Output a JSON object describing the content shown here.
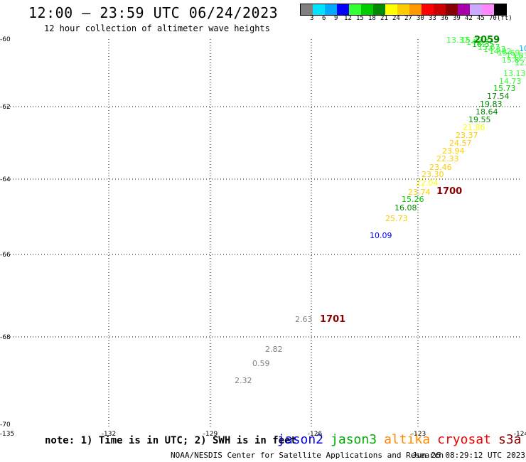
{
  "title": "12:00 – 23:59 UTC 06/24/2023",
  "subtitle": "12 hour collection of altimeter wave heights",
  "legend": {
    "colors": [
      "#808080",
      "#00e5ff",
      "#00aaff",
      "#0000ff",
      "#33ff33",
      "#00cc00",
      "#008800",
      "#ffff00",
      "#ffcc00",
      "#ff9900",
      "#ff0000",
      "#cc0000",
      "#880000",
      "#aa00aa",
      "#ccaaff",
      "#ff88ff",
      "#000000"
    ],
    "labels": [
      "3",
      "6",
      "9",
      "12",
      "15",
      "18",
      "21",
      "24",
      "27",
      "30",
      "33",
      "36",
      "39",
      "42",
      "45",
      "70",
      "(ft)"
    ]
  },
  "chart_data": {
    "type": "scatter",
    "xlim": [
      -135,
      -124
    ],
    "ylim": [
      -70,
      -60
    ],
    "x_ticks": [
      "-135",
      "-132",
      "-129",
      "-126",
      "-123",
      "-124"
    ],
    "y_ticks": [
      "-60",
      "-62",
      "-64",
      "-66",
      "-68",
      "-70"
    ],
    "grid": true,
    "time_labels": [
      {
        "text": "2059",
        "lon": -122.0,
        "lat": -60.0,
        "color": "#008800"
      },
      {
        "text": "1700",
        "lon": -122.3,
        "lat": -64.3,
        "color": "#880000"
      },
      {
        "text": "1701",
        "lon": -126.0,
        "lat": -67.7,
        "color": "#880000"
      }
    ],
    "points": [
      {
        "v": "13.37",
        "lon": -123.0,
        "lat": -60.0,
        "color": "#33ff33"
      },
      {
        "v": "15.8",
        "lon": -122.2,
        "lat": -60.4,
        "color": "#33ff33"
      },
      {
        "v": "13.13",
        "lon": -121.9,
        "lat": -60.9,
        "color": "#33ff33"
      },
      {
        "v": "14.73",
        "lon": -122.0,
        "lat": -61.2,
        "color": "#33ff33"
      },
      {
        "v": "15.73",
        "lon": -122.1,
        "lat": -61.5,
        "color": "#00cc00"
      },
      {
        "v": "17.54",
        "lon": -122.3,
        "lat": -61.7,
        "color": "#008800"
      },
      {
        "v": "19.83",
        "lon": -122.4,
        "lat": -62.0,
        "color": "#008800"
      },
      {
        "v": "18.64",
        "lon": -122.5,
        "lat": -62.2,
        "color": "#008800"
      },
      {
        "v": "19.55",
        "lon": -122.6,
        "lat": -62.4,
        "color": "#008800"
      },
      {
        "v": "21.86",
        "lon": -122.7,
        "lat": -62.7,
        "color": "#ffff00"
      },
      {
        "v": "23.37",
        "lon": -122.8,
        "lat": -62.9,
        "color": "#ffcc00"
      },
      {
        "v": "24.57",
        "lon": -122.9,
        "lat": -63.1,
        "color": "#ffcc00"
      },
      {
        "v": "23.94",
        "lon": -123.0,
        "lat": -63.3,
        "color": "#ffcc00"
      },
      {
        "v": "22.33",
        "lon": -123.1,
        "lat": -63.5,
        "color": "#ffcc00"
      },
      {
        "v": "23.46",
        "lon": -123.2,
        "lat": -63.7,
        "color": "#ffcc00"
      },
      {
        "v": "23.30",
        "lon": -123.3,
        "lat": -63.9,
        "color": "#ffcc00"
      },
      {
        "v": "22.04",
        "lon": -123.4,
        "lat": -64.1,
        "color": "#ffff00"
      },
      {
        "v": "23.74",
        "lon": -123.5,
        "lat": -64.3,
        "color": "#ffcc00"
      },
      {
        "v": "15.26",
        "lon": -123.5,
        "lat": -64.5,
        "color": "#00cc00"
      },
      {
        "v": "16.08",
        "lon": -123.7,
        "lat": -64.7,
        "color": "#008800"
      },
      {
        "v": "25.73",
        "lon": -123.9,
        "lat": -65.0,
        "color": "#ffcc00"
      },
      {
        "v": "10.09",
        "lon": -124.4,
        "lat": -65.5,
        "color": "#0000ff"
      },
      {
        "v": "2.63",
        "lon": -126.3,
        "lat": -67.7,
        "color": "#808080"
      },
      {
        "v": "2.82",
        "lon": -128.0,
        "lat": -68.4,
        "color": "#808080"
      },
      {
        "v": "0.59",
        "lon": -128.3,
        "lat": -68.8,
        "color": "#808080"
      },
      {
        "v": "2.32",
        "lon": -128.8,
        "lat": -69.2,
        "color": "#808080"
      }
    ]
  },
  "note": "note: 1) Time is in UTC; 2) SWH is in feet",
  "satellites": [
    {
      "name": "jason2",
      "color": "#0000dd"
    },
    {
      "name": "jason3",
      "color": "#00aa00"
    },
    {
      "name": "altika",
      "color": "#ff8800"
    },
    {
      "name": "cryosat",
      "color": "#ee0000"
    },
    {
      "name": "s3a",
      "color": "#880000"
    }
  ],
  "footer_left": "NOAA/NESDIS Center for Satellite Applications and Research",
  "footer_right": "Jun 26 08:29:12 UTC 2023"
}
